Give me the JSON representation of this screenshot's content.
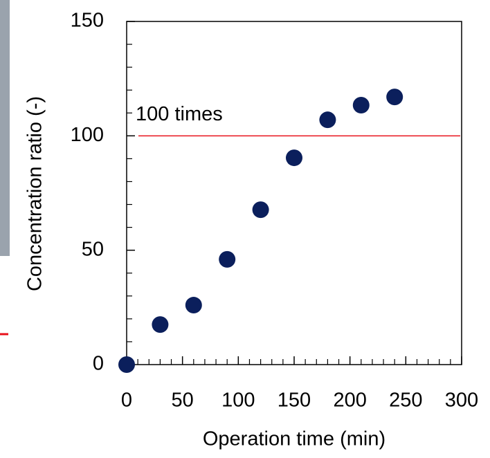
{
  "chart_data": {
    "type": "scatter",
    "x_label": "Operation time (min)",
    "y_label": "Concentration ratio (-)",
    "x": [
      0,
      30,
      60,
      90,
      120,
      150,
      180,
      210,
      240
    ],
    "series": [
      {
        "color": "#0b1f5c",
        "values": [
          0,
          17.5,
          26,
          46,
          67.7,
          90.4,
          107,
          113.4,
          117
        ]
      }
    ],
    "xlim": [
      0,
      300
    ],
    "ylim": [
      0,
      150
    ],
    "xticks": [
      0,
      50,
      100,
      150,
      200,
      250,
      300
    ],
    "yticks": [
      0,
      50,
      100,
      150
    ],
    "reference_line": {
      "value": 100,
      "label": "100 times",
      "color": "#e8101a"
    }
  }
}
